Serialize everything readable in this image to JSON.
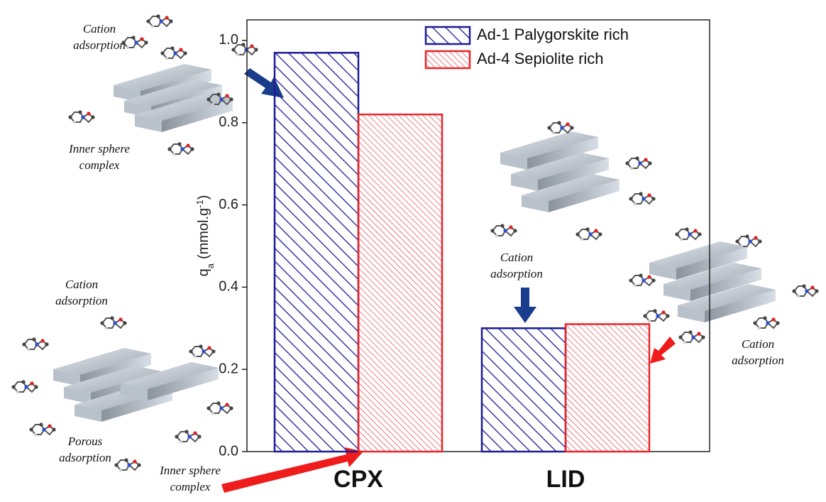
{
  "chart_data": {
    "type": "bar",
    "categories": [
      "CPX",
      "LID"
    ],
    "series": [
      {
        "name": "Ad-1 Palygorskite rich",
        "color": "#1c1c96",
        "values": [
          0.97,
          0.3
        ]
      },
      {
        "name": "Ad-4 Sepiolite rich",
        "color": "#e8262a",
        "values": [
          0.82,
          0.31
        ]
      }
    ],
    "y_label": {
      "symbol": "q",
      "sub": "a",
      "unit": "(mmol.g",
      "sup": "-1",
      "close": ")"
    },
    "ylim": [
      0,
      1.05
    ],
    "yticks": [
      {
        "value": 0,
        "label": "0.0"
      },
      0.2,
      0.4,
      0.6,
      0.8,
      {
        "value": 1,
        "label": "1.0"
      }
    ],
    "legend": "top-right",
    "annotations": [
      {
        "lines": [
          "Cation",
          "adsorption"
        ]
      },
      {
        "lines": [
          "Inner sphere",
          "complex"
        ]
      },
      {
        "lines": [
          "Cation",
          "adsorption"
        ]
      },
      {
        "lines": [
          "Porous",
          "adsorption"
        ]
      },
      {
        "lines": [
          "Inner sphere",
          "complex"
        ]
      },
      {
        "lines": [
          "Cation",
          "adsorption"
        ]
      },
      {
        "lines": [
          "Cation",
          "adsorption"
        ]
      }
    ]
  }
}
